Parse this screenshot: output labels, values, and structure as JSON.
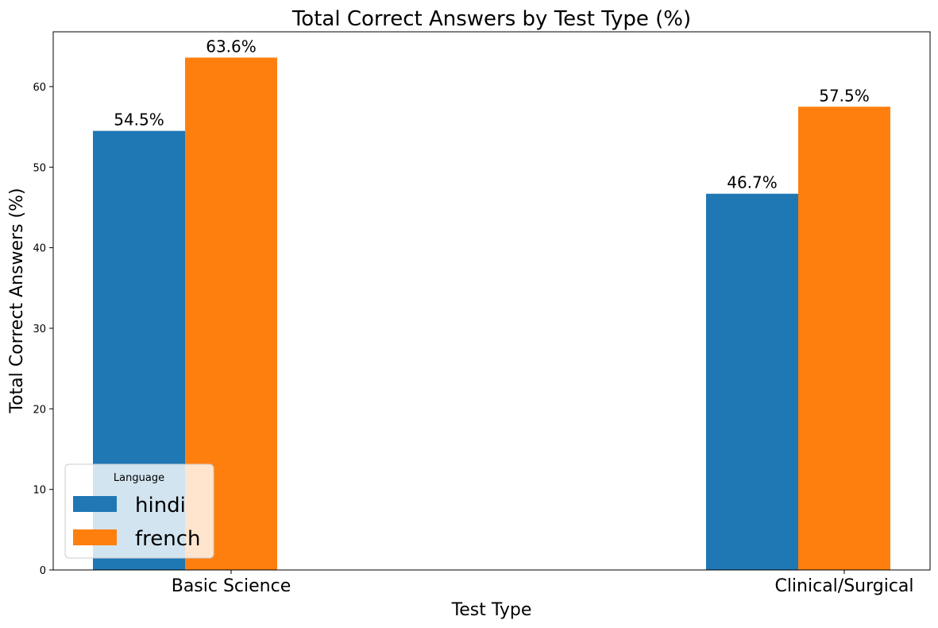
{
  "chart_data": {
    "type": "bar",
    "title": "Total Correct Answers by Test Type (%)",
    "xlabel": "Test Type",
    "ylabel": "Total Correct Answers (%)",
    "categories": [
      "Basic Science",
      "Clinical/Surgical"
    ],
    "series": [
      {
        "name": "hindi",
        "values": [
          54.5,
          46.7
        ],
        "color": "#1f77b4"
      },
      {
        "name": "french",
        "values": [
          63.6,
          57.5
        ],
        "color": "#ff7f0e"
      }
    ],
    "data_labels": [
      [
        "54.5%",
        "46.7%"
      ],
      [
        "63.6%",
        "57.5%"
      ]
    ],
    "ylim": [
      0,
      66.8
    ],
    "yticks": [
      0,
      10,
      20,
      30,
      40,
      50,
      60
    ],
    "grid": false,
    "legend": {
      "title": "Language",
      "placement": "lower-left"
    }
  }
}
